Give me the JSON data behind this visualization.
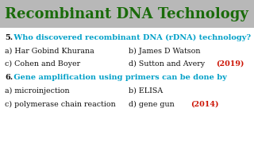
{
  "title": "Recombinant DNA Technology",
  "title_color": "#1a6b0a",
  "title_bg": "#b8b8b8",
  "body_bg": "#ffffff",
  "q5_num": "5.",
  "q5_text": " Who discovered recombinant DNA (rDNA) technology?",
  "q5_color": "#00a0c8",
  "q5_options": [
    [
      "a) Har Gobind Khurana",
      "b) James D Watson"
    ],
    [
      "c) Cohen and Boyer",
      "d) Sutton and Avery"
    ]
  ],
  "q5_answer": "(2019)",
  "q6_num": "6.",
  "q6_text": " Gene amplification using primers can be done by",
  "q6_color": "#00a0c8",
  "q6_options": [
    [
      "a) microinjection",
      "b) ELISA"
    ],
    [
      "c) polymerase chain reaction",
      "d) gene gun"
    ]
  ],
  "q6_answer": "(2014)",
  "option_color": "#111111",
  "num_color": "#111111",
  "answer_color": "#cc1100",
  "font_family": "DejaVu Serif",
  "title_fontsize": 13.0,
  "q_fontsize": 7.0,
  "opt_fontsize": 6.8
}
